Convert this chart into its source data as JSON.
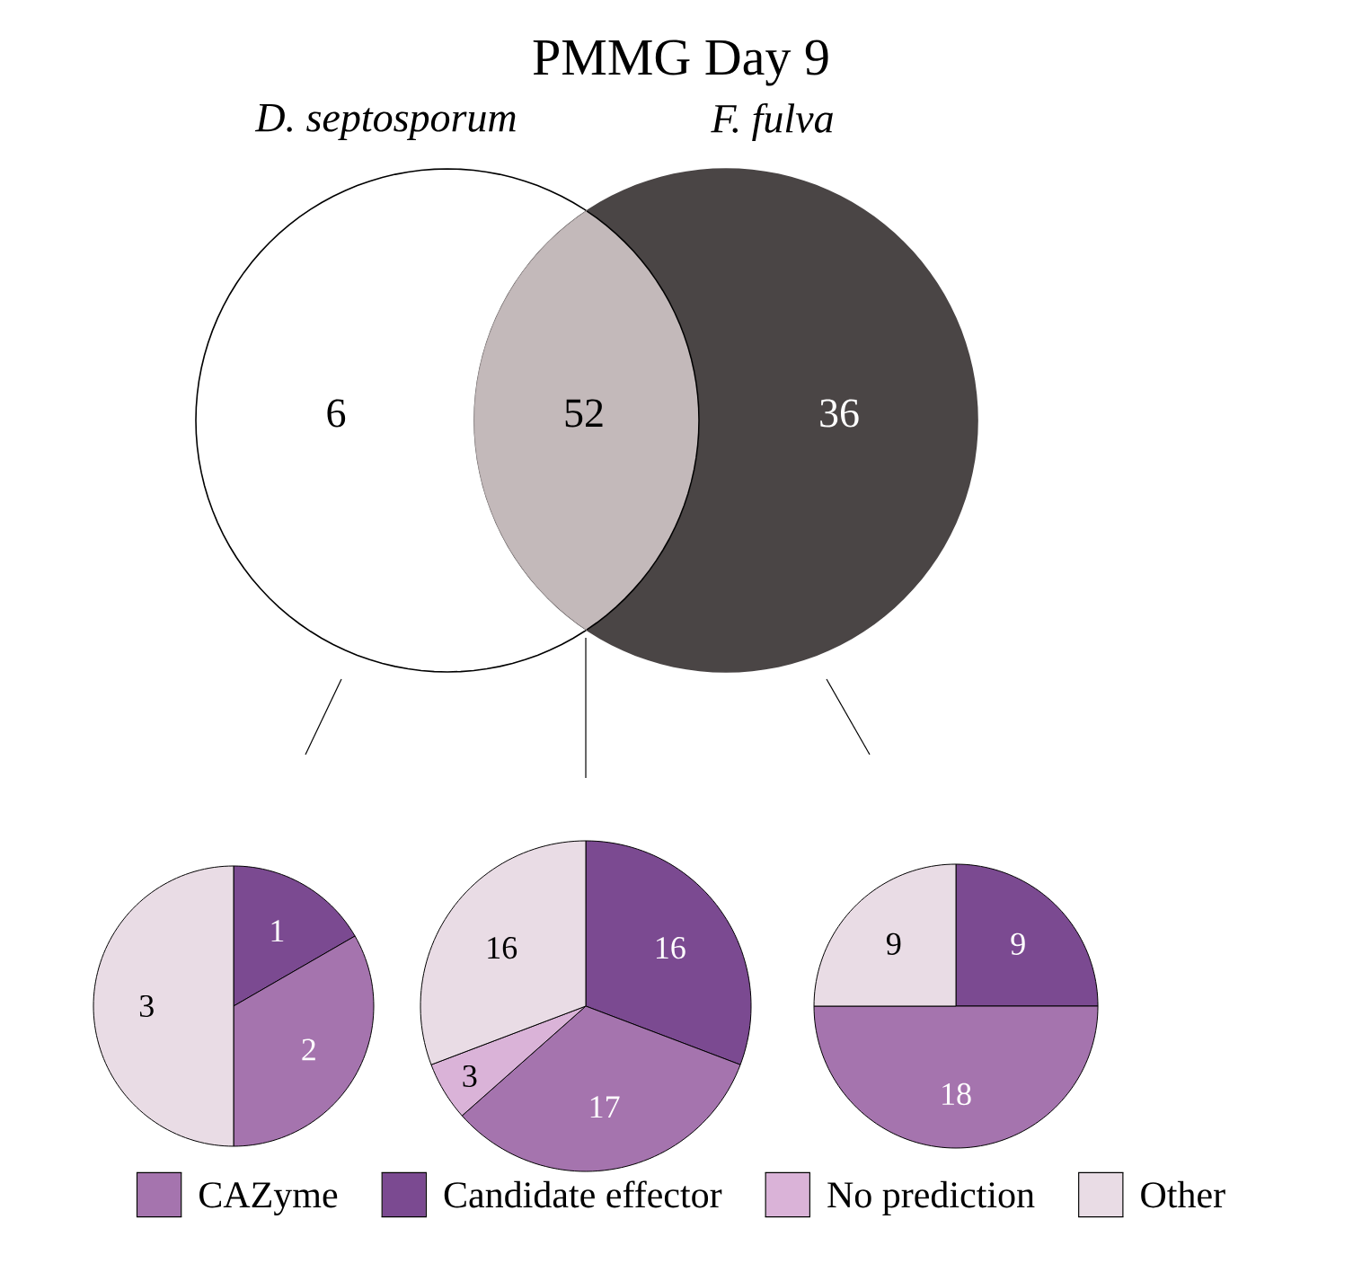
{
  "chart_data": [
    {
      "type": "other",
      "title": "PMMG Day 9",
      "categories": [
        "D. septosporum",
        null,
        "F. fulva"
      ],
      "values": [
        6,
        52,
        36
      ],
      "colors": [
        "#ffffff",
        "#c3b9ba",
        "#4a4545"
      ],
      "data_labels": true
    },
    {
      "type": "pie",
      "categories": [
        null,
        null,
        null,
        null
      ],
      "values": [
        2,
        1,
        0,
        3
      ],
      "colors": [
        "#a574ae",
        "#7b4a91",
        "#dab3d8",
        "#e9dce5"
      ],
      "data_labels": true
    },
    {
      "type": "pie",
      "categories": [
        "CAZyme",
        "Candidate effector",
        "No prediction",
        "Other"
      ],
      "values": [
        17,
        16,
        3,
        16
      ],
      "colors": [
        "#a574ae",
        "#7b4a91",
        "#dab3d8",
        "#e9dce5"
      ],
      "data_labels": true,
      "legend": "bottom"
    },
    {
      "type": "pie",
      "categories": [
        null,
        null,
        null,
        null
      ],
      "values": [
        18,
        9,
        0,
        9
      ],
      "colors": [
        "#a574ae",
        "#7b4a91",
        "#dab3d8",
        "#e9dce5"
      ],
      "data_labels": true
    }
  ]
}
